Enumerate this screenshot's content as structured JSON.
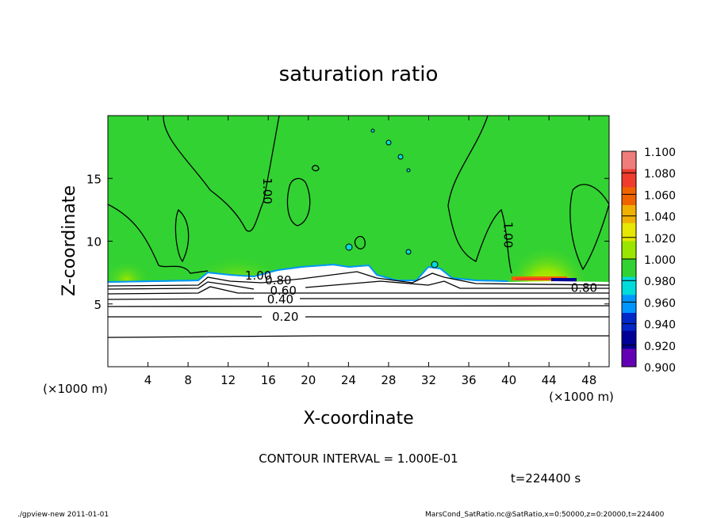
{
  "chart_data": {
    "type": "heatmap",
    "title": "saturation ratio",
    "xlabel": "X-coordinate",
    "ylabel": "Z-coordinate",
    "x_unit": "(×1000 m)",
    "z_unit": "(×1000 m)",
    "xlim": [
      0,
      50
    ],
    "ylim": [
      0,
      20
    ],
    "x_ticks": [
      4,
      8,
      12,
      16,
      20,
      24,
      28,
      32,
      36,
      40,
      44,
      48
    ],
    "y_ticks": [
      5,
      10,
      15
    ],
    "colorbar": {
      "min": 0.9,
      "max": 1.1,
      "labels": [
        "1.100",
        "1.080",
        "1.060",
        "1.040",
        "1.020",
        "1.000",
        "0.980",
        "0.960",
        "0.940",
        "0.920",
        "0.900"
      ],
      "colors": [
        "#f07c7c",
        "#f03c2c",
        "#f06400",
        "#f0b000",
        "#e6e600",
        "#9ae600",
        "#32d232",
        "#00dcdc",
        "#0096ff",
        "#0028c8",
        "#000096",
        "#6400b4"
      ]
    },
    "contour_labels": [
      {
        "text": "1.00",
        "x": 15.0,
        "z": 7.2
      },
      {
        "text": "1.00",
        "x": 15.5,
        "z": 14.0
      },
      {
        "text": "1.00",
        "x": 39.5,
        "z": 10.5
      },
      {
        "text": "0.80",
        "x": 17.0,
        "z": 6.8
      },
      {
        "text": "0.80",
        "x": 47.5,
        "z": 6.2
      },
      {
        "text": "0.60",
        "x": 17.5,
        "z": 6.0
      },
      {
        "text": "0.40",
        "x": 17.2,
        "z": 5.3
      },
      {
        "text": "0.20",
        "x": 17.7,
        "z": 3.9
      }
    ],
    "contour_interval_text": "CONTOUR INTERVAL = 1.000E-01",
    "time_text": "t=224400 s"
  },
  "footer": {
    "left": "./gpview-new   2011-01-01",
    "right": "MarsCond_SatRatio.nc@SatRatio,x=0:50000,z=0:20000,t=224400"
  }
}
